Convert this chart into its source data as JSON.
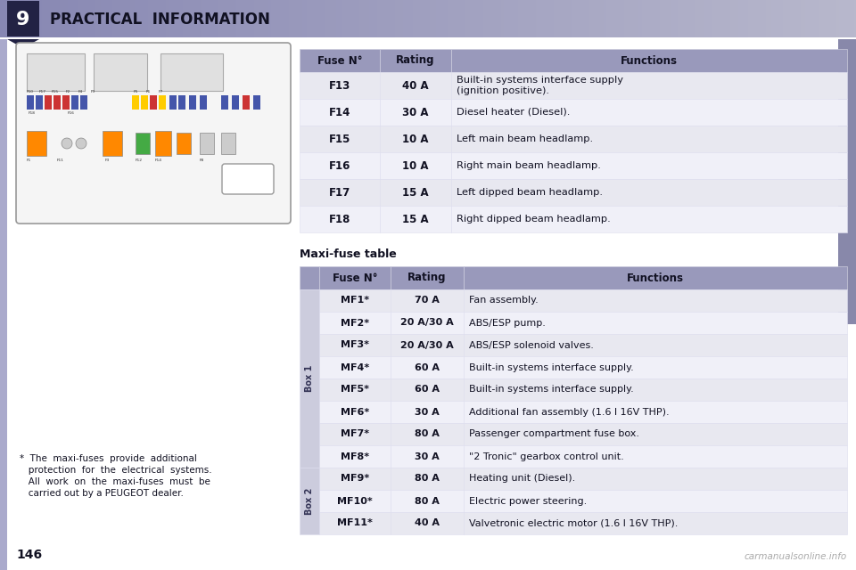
{
  "page_number": "146",
  "chapter_number": "9",
  "chapter_title": "PRACTICAL  INFORMATION",
  "table1": {
    "title_row": [
      "Fuse N°",
      "Rating",
      "Functions"
    ],
    "header_bg": "#9999bb",
    "row_bg_odd": "#e8e8f0",
    "row_bg_even": "#f0f0f8",
    "rows": [
      [
        "F13",
        "40 A",
        "Built-in systems interface supply\n(ignition positive)."
      ],
      [
        "F14",
        "30 A",
        "Diesel heater (Diesel)."
      ],
      [
        "F15",
        "10 A",
        "Left main beam headlamp."
      ],
      [
        "F16",
        "10 A",
        "Right main beam headlamp."
      ],
      [
        "F17",
        "15 A",
        "Left dipped beam headlamp."
      ],
      [
        "F18",
        "15 A",
        "Right dipped beam headlamp."
      ]
    ]
  },
  "maxi_label": "Maxi-fuse table",
  "table2": {
    "title_row": [
      "Fuse N°",
      "Rating",
      "Functions"
    ],
    "header_bg": "#9999bb",
    "row_bg_odd": "#e8e8f0",
    "row_bg_even": "#f0f0f8",
    "rows": [
      [
        "MF1*",
        "70 A",
        "Fan assembly.",
        "Box 1"
      ],
      [
        "MF2*",
        "20 A/30 A",
        "ABS/ESP pump.",
        "Box 1"
      ],
      [
        "MF3*",
        "20 A/30 A",
        "ABS/ESP solenoid valves.",
        "Box 1"
      ],
      [
        "MF4*",
        "60 A",
        "Built-in systems interface supply.",
        "Box 1"
      ],
      [
        "MF5*",
        "60 A",
        "Built-in systems interface supply.",
        "Box 1"
      ],
      [
        "MF6*",
        "30 A",
        "Additional fan assembly (1.6 l 16V THP).",
        "Box 1"
      ],
      [
        "MF7*",
        "80 A",
        "Passenger compartment fuse box.",
        "Box 1"
      ],
      [
        "MF8*",
        "30 A",
        "\"2 Tronic\" gearbox control unit.",
        "Box 1"
      ],
      [
        "MF9*",
        "80 A",
        "Heating unit (Diesel).",
        "Box 2"
      ],
      [
        "MF10*",
        "80 A",
        "Electric power steering.",
        "Box 2"
      ],
      [
        "MF11*",
        "40 A",
        "Valvetronic electric motor (1.6 l 16V THP).",
        "Box 2"
      ]
    ]
  },
  "footnote_lines": [
    "*  The  maxi-fuses  provide  additional",
    "   protection  for  the  electrical  systems.",
    "   All  work  on  the  maxi-fuses  must  be",
    "   carried out by a PEUGEOT dealer."
  ],
  "watermark": "carmanualsonline.info"
}
